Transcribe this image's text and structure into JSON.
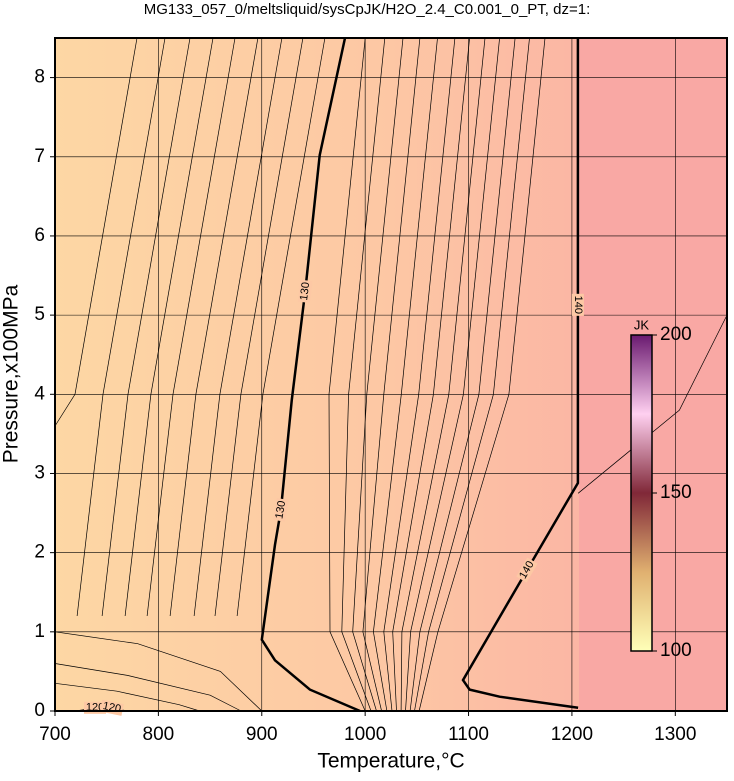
{
  "chart_data": {
    "type": "contour",
    "title": "MG133_057_0/meltsliquid/sysCpJK/H2O_2.4_C0.001_0_PT, dz=1:",
    "xlabel": "Temperature,°C",
    "ylabel": "Pressure,x100MPa",
    "xlim": [
      700,
      1350
    ],
    "ylim": [
      0,
      8.5
    ],
    "xticks": [
      700,
      800,
      900,
      1000,
      1100,
      1200,
      1300
    ],
    "yticks": [
      0,
      1,
      2,
      3,
      4,
      5,
      6,
      7,
      8
    ],
    "grid": true,
    "contours": [
      {
        "level": 130,
        "bold": true,
        "x": [
          980.5,
          956,
          942,
          929,
          918.5,
          912.8,
          900,
          912.8,
          946.6,
          995
        ],
        "y": [
          8.5,
          7.02,
          5.3,
          3.93,
          2.54,
          2.1,
          0.9,
          0.64,
          0.27,
          0
        ]
      },
      {
        "level": 140,
        "bold": true,
        "x": [
          1205.8,
          1205.8,
          1205.8,
          1156.5,
          1094.6,
          1101,
          1130,
          1206
        ],
        "y": [
          8.5,
          5.13,
          2.88,
          1.78,
          0.39,
          0.27,
          0.18,
          0.04
        ]
      },
      {
        "level": 120,
        "bold": false,
        "x": [
          720,
          738.7,
          755,
          770
        ],
        "y": [
          0,
          0.04,
          0.04,
          0
        ]
      },
      {
        "bold": false,
        "x": [
          779.3,
          719.3,
          700
        ],
        "y": [
          8.5,
          4,
          3.6
        ]
      },
      {
        "bold": false,
        "x": [
          806.4,
          746.4,
          721.4
        ],
        "y": [
          8.5,
          4,
          1.2
        ]
      },
      {
        "bold": false,
        "x": [
          830.6,
          770.6,
          745.6
        ],
        "y": [
          8.5,
          4,
          1.2
        ]
      },
      {
        "bold": false,
        "x": [
          852.8,
          792.8,
          767.8
        ],
        "y": [
          8.5,
          4,
          1.2
        ]
      },
      {
        "bold": false,
        "x": [
          874.1,
          814.1,
          789.1
        ],
        "y": [
          8.5,
          4,
          1.2
        ]
      },
      {
        "bold": false,
        "x": [
          896.3,
          836.3,
          811.3
        ],
        "y": [
          8.5,
          4,
          1.2
        ]
      },
      {
        "bold": false,
        "x": [
          919.5,
          859.5,
          834.5
        ],
        "y": [
          8.5,
          4,
          1.2
        ]
      },
      {
        "bold": false,
        "x": [
          939.8,
          879.8,
          854.8
        ],
        "y": [
          8.5,
          4,
          1.2
        ]
      },
      {
        "bold": false,
        "x": [
          961.1,
          901.1,
          876.1
        ],
        "y": [
          8.5,
          4,
          1.2
        ]
      },
      {
        "bold": false,
        "x": [
          1000,
          965,
          966,
          1000
        ],
        "y": [
          8.5,
          4,
          1,
          0
        ]
      },
      {
        "bold": false,
        "x": [
          1019,
          984,
          977.4,
          1005.7
        ],
        "y": [
          8.5,
          4,
          1,
          0
        ]
      },
      {
        "bold": false,
        "x": [
          1036.6,
          1001.6,
          988,
          1011
        ],
        "y": [
          8.5,
          4,
          1,
          0
        ]
      },
      {
        "bold": false,
        "x": [
          1053,
          1018,
          997.8,
          1015.9
        ],
        "y": [
          8.5,
          4,
          1,
          0
        ]
      },
      {
        "bold": false,
        "x": [
          1070,
          1035,
          1008,
          1021
        ],
        "y": [
          8.5,
          4,
          1,
          0
        ]
      },
      {
        "bold": false,
        "x": [
          1086.8,
          1051.8,
          1018,
          1026
        ],
        "y": [
          8.5,
          4,
          1,
          0
        ]
      },
      {
        "bold": false,
        "x": [
          1101,
          1066,
          1026.6,
          1030.3
        ],
        "y": [
          8.5,
          4,
          1,
          0
        ]
      },
      {
        "bold": false,
        "x": [
          1115.9,
          1080.9,
          1035.5,
          1034.8
        ],
        "y": [
          8.5,
          4,
          1,
          0
        ]
      },
      {
        "bold": false,
        "x": [
          1130,
          1095,
          1044,
          1039
        ],
        "y": [
          8.5,
          4,
          1,
          0
        ]
      },
      {
        "bold": false,
        "x": [
          1145,
          1110,
          1053,
          1043.5
        ],
        "y": [
          8.5,
          4,
          1,
          0
        ]
      },
      {
        "bold": false,
        "x": [
          1159,
          1124,
          1061.4,
          1047.7
        ],
        "y": [
          8.5,
          4,
          1,
          0
        ]
      },
      {
        "bold": false,
        "x": [
          1174,
          1139,
          1070.4,
          1052.2
        ],
        "y": [
          8.5,
          4,
          1,
          0
        ]
      },
      {
        "bold": false,
        "x": [
          700,
          780,
          860,
          900
        ],
        "y": [
          1.0,
          0.85,
          0.5,
          0
        ]
      },
      {
        "bold": false,
        "x": [
          700,
          770,
          850,
          880
        ],
        "y": [
          0.6,
          0.45,
          0.2,
          0
        ]
      },
      {
        "bold": false,
        "x": [
          700,
          760,
          820,
          840
        ],
        "y": [
          0.35,
          0.25,
          0.08,
          0
        ]
      },
      {
        "bold": false,
        "x": [
          1206,
          1304,
          1350
        ],
        "y": [
          2.75,
          3.8,
          5.0
        ]
      }
    ],
    "colorbar": {
      "label": "JK",
      "lim": [
        100,
        200
      ],
      "ticks": [
        100,
        150,
        200
      ],
      "colors": [
        "#ffffb8",
        "#e0b070",
        "#802838",
        "#ffd0f0",
        "#6a1a70"
      ]
    }
  }
}
